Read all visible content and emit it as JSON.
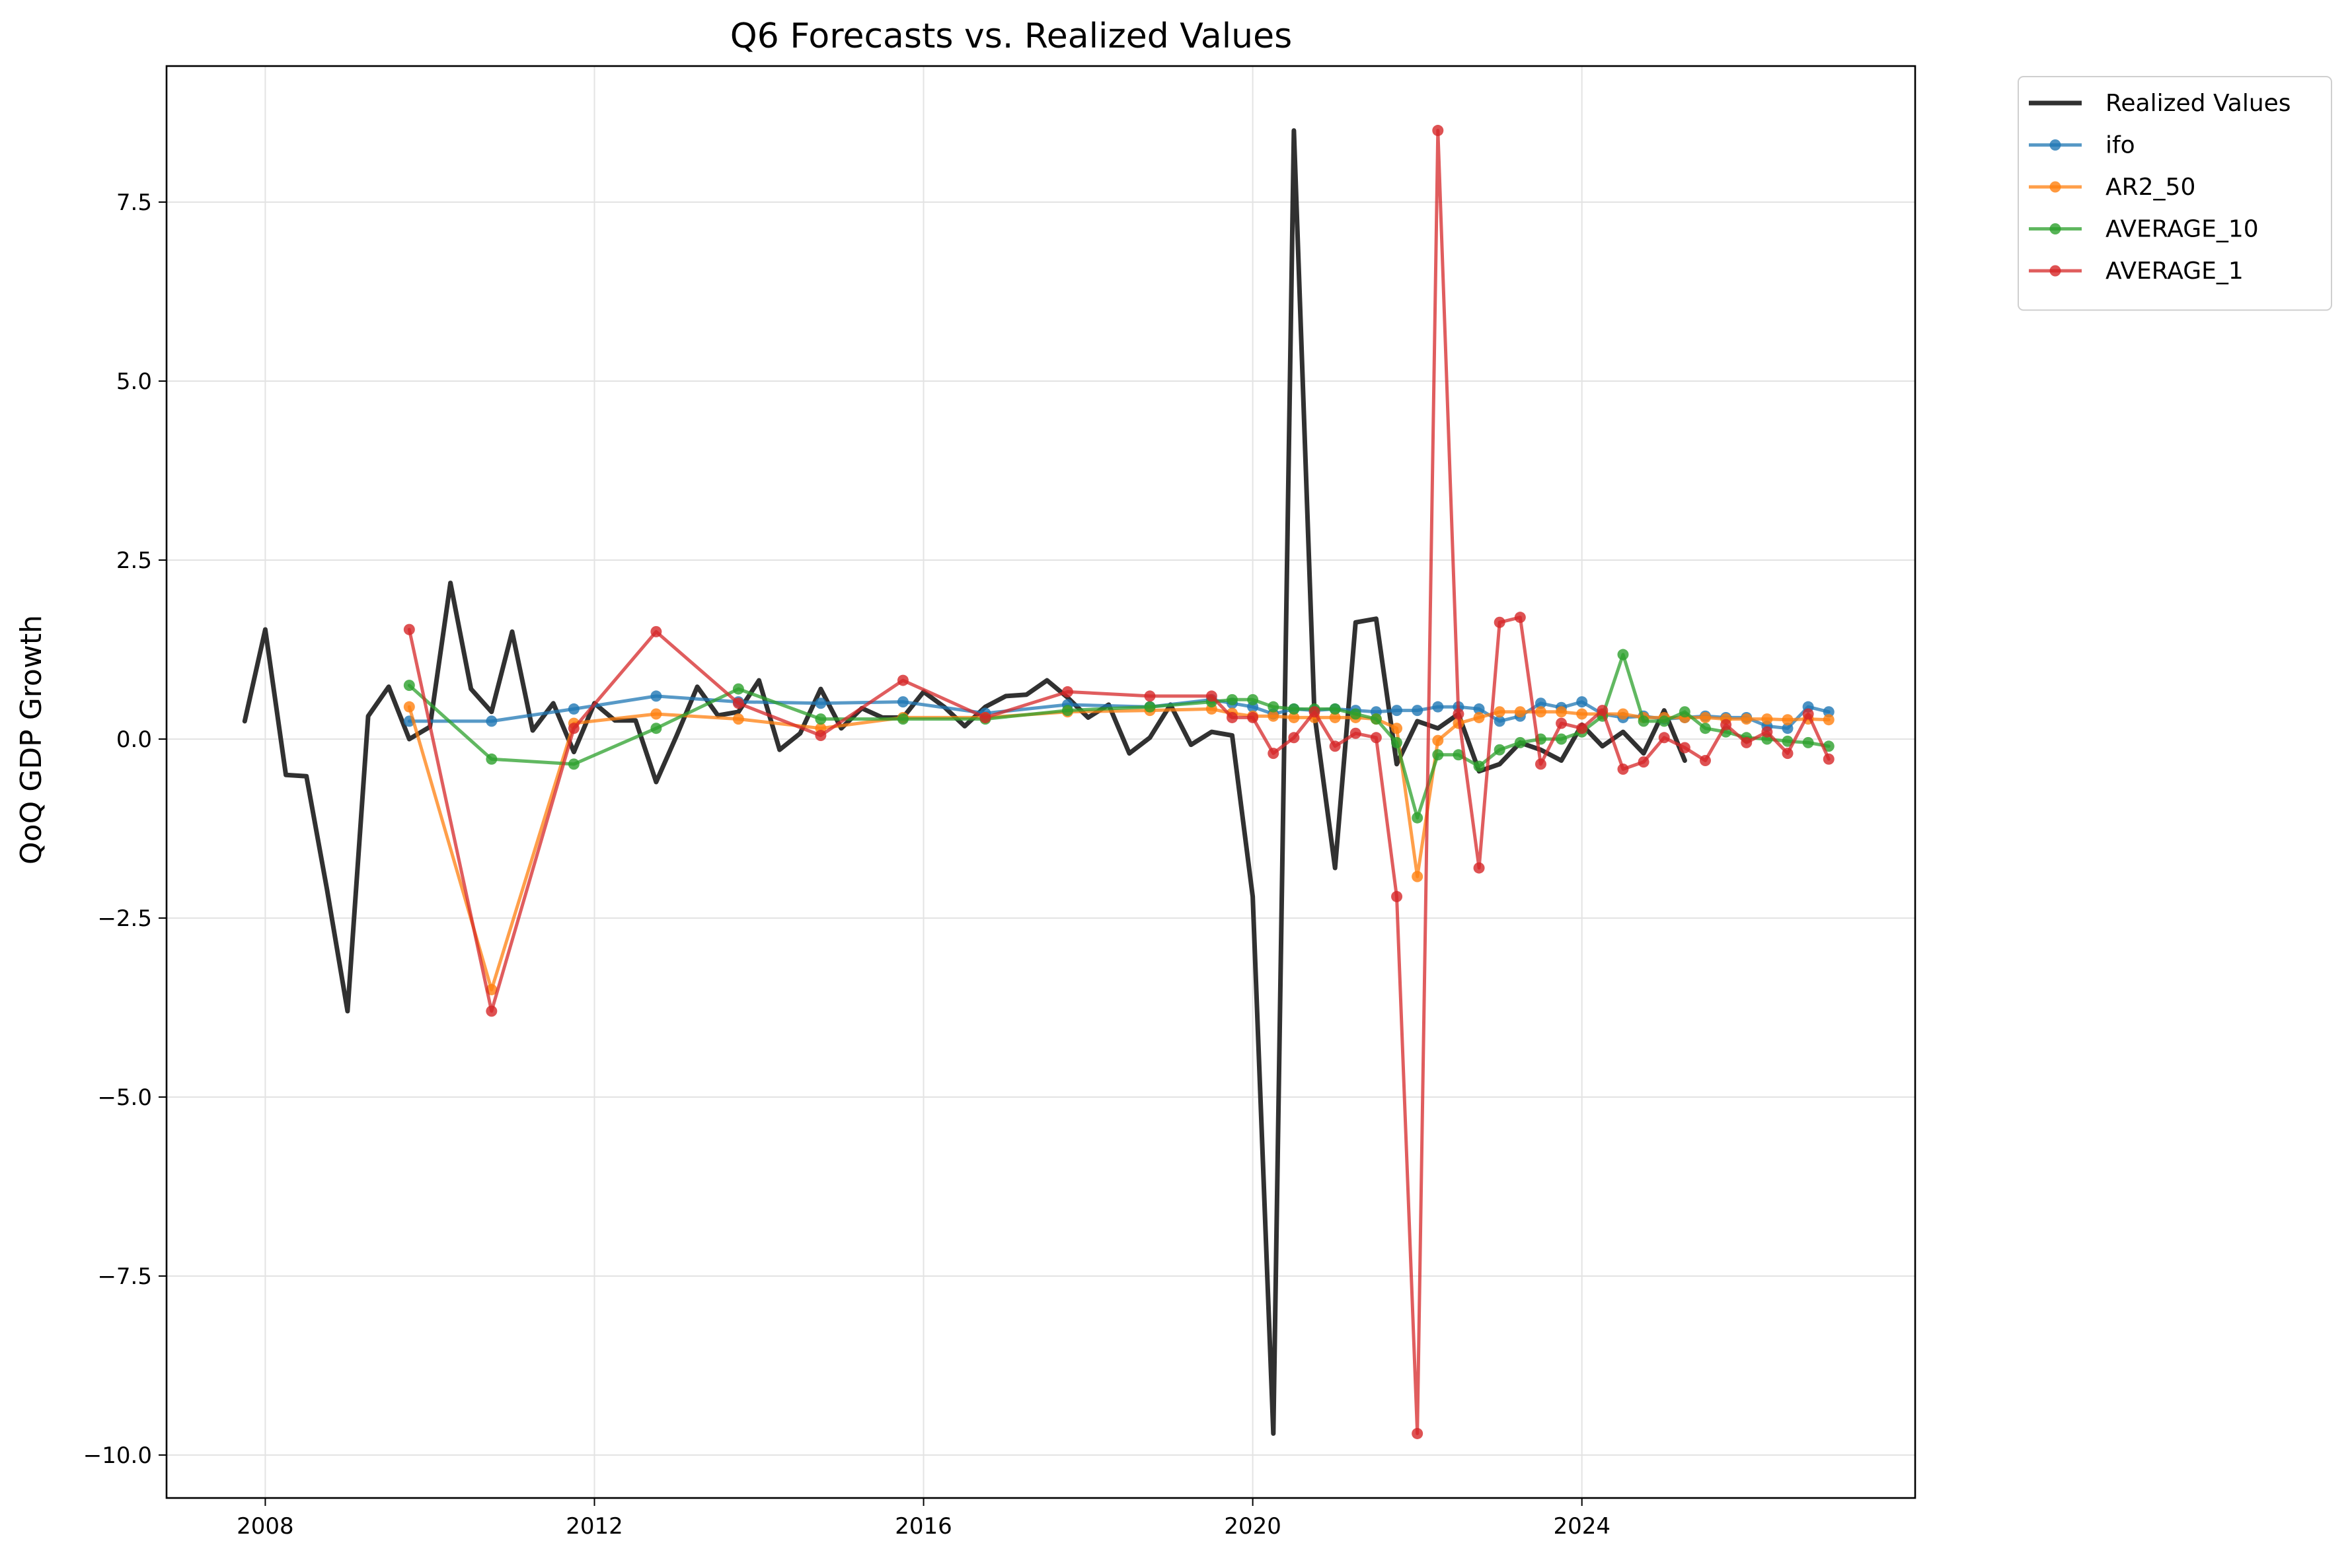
{
  "chart_data": {
    "type": "line",
    "title": "Q6 Forecasts vs. Realized Values",
    "xlabel": "",
    "ylabel": "QoQ GDP Growth",
    "xlim": [
      2006.8,
      2028.05
    ],
    "ylim": [
      -10.6,
      9.4
    ],
    "x_ticks": [
      2008,
      2012,
      2016,
      2020,
      2024
    ],
    "x_tick_labels": [
      "2008",
      "2012",
      "2016",
      "2020",
      "2024"
    ],
    "y_ticks": [
      7.5,
      5.0,
      2.5,
      0.0,
      -2.5,
      -5.0,
      -7.5,
      -10.0
    ],
    "y_tick_labels": [
      "7.5",
      "5.0",
      "2.5",
      "0.0",
      "−2.5",
      "−5.0",
      "−7.5",
      "−10.0"
    ],
    "grid": true,
    "legend": "outside-top-right",
    "series": [
      {
        "name": "Realized Values",
        "color": "#262626",
        "markers": false,
        "x": [
          2007.75,
          2008.0,
          2008.25,
          2008.5,
          2008.75,
          2009.0,
          2009.25,
          2009.5,
          2009.75,
          2010.0,
          2010.25,
          2010.5,
          2010.75,
          2011.0,
          2011.25,
          2011.5,
          2011.75,
          2012.0,
          2012.25,
          2012.5,
          2012.75,
          2013.0,
          2013.25,
          2013.5,
          2013.75,
          2014.0,
          2014.25,
          2014.5,
          2014.75,
          2015.0,
          2015.25,
          2015.5,
          2015.75,
          2016.0,
          2016.25,
          2016.5,
          2016.75,
          2017.0,
          2017.25,
          2017.5,
          2017.75,
          2018.0,
          2018.25,
          2018.5,
          2018.75,
          2019.0,
          2019.25,
          2019.5,
          2019.75,
          2020.0,
          2020.25,
          2020.5,
          2020.75,
          2021.0,
          2021.25,
          2021.5,
          2021.75,
          2022.0,
          2022.25,
          2022.5,
          2022.75,
          2023.0,
          2023.25,
          2023.5,
          2023.75,
          2024.0,
          2024.25,
          2024.5,
          2024.75,
          2025.0,
          2025.25
        ],
        "y": [
          0.25,
          1.53,
          -0.5,
          -0.52,
          -2.1,
          -3.8,
          0.32,
          0.73,
          0.0,
          0.17,
          2.18,
          0.7,
          0.38,
          1.5,
          0.12,
          0.5,
          -0.18,
          0.5,
          0.26,
          0.26,
          -0.6,
          0.05,
          0.73,
          0.33,
          0.38,
          0.82,
          -0.15,
          0.08,
          0.7,
          0.15,
          0.43,
          0.3,
          0.3,
          0.66,
          0.45,
          0.18,
          0.45,
          0.6,
          0.62,
          0.82,
          0.58,
          0.3,
          0.48,
          -0.2,
          0.02,
          0.48,
          -0.08,
          0.1,
          0.05,
          -2.2,
          -9.7,
          8.5,
          0.35,
          -1.8,
          1.63,
          1.68,
          -0.35,
          0.25,
          0.15,
          0.35,
          -0.45,
          -0.35,
          -0.05,
          -0.15,
          -0.3,
          0.2,
          -0.1,
          0.1,
          -0.2,
          0.4,
          -0.3
        ]
      },
      {
        "name": "ifo",
        "color": "#1f77b4",
        "markers": true,
        "x": [
          2009.75,
          2010.75,
          2011.75,
          2012.75,
          2013.75,
          2014.75,
          2015.75,
          2016.75,
          2017.75,
          2018.75,
          2019.5,
          2019.75,
          2020.0,
          2020.25,
          2020.5,
          2020.75,
          2021.0,
          2021.25,
          2021.5,
          2021.75,
          2022.0,
          2022.25,
          2022.5,
          2022.75,
          2023.0,
          2023.25,
          2023.5,
          2023.75,
          2024.0,
          2024.25,
          2024.5,
          2024.75,
          2025.0,
          2025.25,
          2025.5,
          2025.75,
          2026.0,
          2026.25,
          2026.5,
          2026.75,
          2027.0
        ],
        "y": [
          0.25,
          0.25,
          0.42,
          0.6,
          0.52,
          0.5,
          0.52,
          0.36,
          0.48,
          0.45,
          0.55,
          0.5,
          0.45,
          0.35,
          0.42,
          0.4,
          0.42,
          0.4,
          0.38,
          0.4,
          0.4,
          0.45,
          0.45,
          0.42,
          0.25,
          0.32,
          0.5,
          0.44,
          0.52,
          0.35,
          0.3,
          0.32,
          0.28,
          0.3,
          0.32,
          0.3,
          0.3,
          0.18,
          0.15,
          0.45,
          0.38
        ]
      },
      {
        "name": "AR2_50",
        "color": "#ff7f0e",
        "markers": true,
        "x": [
          2009.75,
          2010.75,
          2011.75,
          2012.75,
          2013.75,
          2014.75,
          2015.75,
          2016.75,
          2017.75,
          2018.75,
          2019.5,
          2019.75,
          2020.0,
          2020.25,
          2020.5,
          2020.75,
          2021.0,
          2021.25,
          2021.5,
          2021.75,
          2022.0,
          2022.25,
          2022.5,
          2022.75,
          2023.0,
          2023.25,
          2023.5,
          2023.75,
          2024.0,
          2024.25,
          2024.5,
          2024.75,
          2025.0,
          2025.25,
          2025.5,
          2025.75,
          2026.0,
          2026.25,
          2026.5,
          2026.75,
          2027.0
        ],
        "y": [
          0.45,
          -3.5,
          0.22,
          0.35,
          0.28,
          0.15,
          0.3,
          0.3,
          0.38,
          0.4,
          0.42,
          0.36,
          0.32,
          0.32,
          0.3,
          0.3,
          0.3,
          0.3,
          0.28,
          0.15,
          -1.92,
          -0.02,
          0.22,
          0.3,
          0.38,
          0.38,
          0.38,
          0.38,
          0.35,
          0.35,
          0.35,
          0.3,
          0.3,
          0.3,
          0.3,
          0.28,
          0.28,
          0.28,
          0.27,
          0.28,
          0.27
        ]
      },
      {
        "name": "AVERAGE_10",
        "color": "#2ca02c",
        "markers": true,
        "x": [
          2009.75,
          2010.75,
          2011.75,
          2012.75,
          2013.75,
          2014.75,
          2015.75,
          2016.75,
          2017.75,
          2018.75,
          2019.5,
          2019.75,
          2020.0,
          2020.25,
          2020.5,
          2020.75,
          2021.0,
          2021.25,
          2021.5,
          2021.75,
          2022.0,
          2022.25,
          2022.5,
          2022.75,
          2023.0,
          2023.25,
          2023.5,
          2023.75,
          2024.0,
          2024.25,
          2024.5,
          2024.75,
          2025.0,
          2025.25,
          2025.5,
          2025.75,
          2026.0,
          2026.25,
          2026.5,
          2026.75,
          2027.0
        ],
        "y": [
          0.75,
          -0.28,
          -0.35,
          0.15,
          0.7,
          0.28,
          0.28,
          0.28,
          0.4,
          0.45,
          0.52,
          0.55,
          0.55,
          0.45,
          0.42,
          0.42,
          0.42,
          0.35,
          0.28,
          -0.05,
          -1.1,
          -0.22,
          -0.22,
          -0.38,
          -0.15,
          -0.05,
          0.0,
          0.0,
          0.1,
          0.32,
          1.18,
          0.25,
          0.25,
          0.38,
          0.15,
          0.1,
          0.02,
          0.0,
          -0.03,
          -0.05,
          -0.1
        ]
      },
      {
        "name": "AVERAGE_1",
        "color": "#d62728",
        "markers": true,
        "x": [
          2009.75,
          2010.75,
          2011.75,
          2012.75,
          2013.75,
          2014.75,
          2015.75,
          2016.75,
          2017.75,
          2018.75,
          2019.5,
          2019.75,
          2020.0,
          2020.25,
          2020.5,
          2020.75,
          2021.0,
          2021.25,
          2021.5,
          2021.75,
          2022.0,
          2022.25,
          2022.5,
          2022.75,
          2023.0,
          2023.25,
          2023.5,
          2023.75,
          2024.0,
          2024.25,
          2024.5,
          2024.75,
          2025.0,
          2025.25,
          2025.5,
          2025.75,
          2026.0,
          2026.25,
          2026.5,
          2026.75,
          2027.0
        ],
        "y": [
          1.53,
          -3.8,
          0.15,
          1.5,
          0.5,
          0.05,
          0.82,
          0.3,
          0.66,
          0.6,
          0.6,
          0.3,
          0.3,
          -0.2,
          0.02,
          0.38,
          -0.1,
          0.08,
          0.02,
          -2.2,
          -9.7,
          8.5,
          0.35,
          -1.8,
          1.63,
          1.7,
          -0.35,
          0.22,
          0.15,
          0.4,
          -0.42,
          -0.32,
          0.02,
          -0.12,
          -0.3,
          0.2,
          -0.05,
          0.1,
          -0.2,
          0.35,
          -0.28
        ]
      }
    ]
  }
}
